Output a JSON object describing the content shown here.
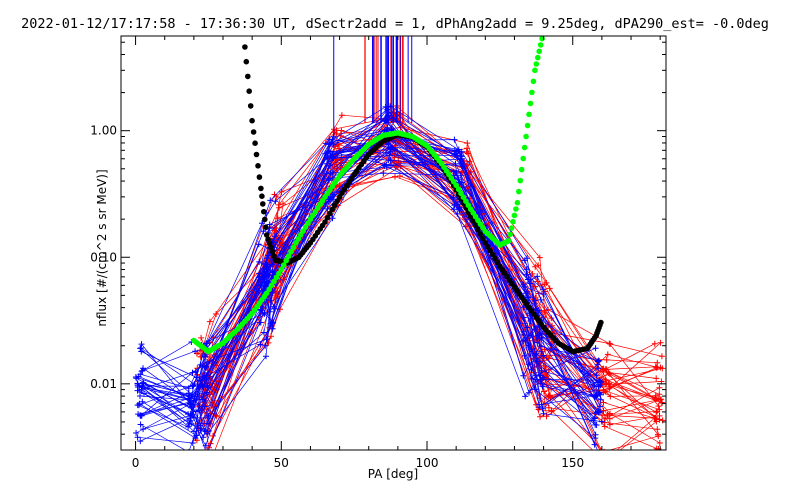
{
  "chart_data": {
    "type": "line",
    "title": "2022-01-12/17:17:58 - 17:36:30 UT, dSectr2add = 1, dPhAng2add = 9.25deg, dPA290_est=  -0.0deg",
    "xlabel": "PA [deg]",
    "ylabel": "nflux [#/(cm^2 s sr MeV)]",
    "xscale": "linear",
    "yscale": "log",
    "xlim": [
      -5,
      182
    ],
    "ylim": [
      0.003,
      5.6
    ],
    "x_ticks": [
      0,
      50,
      100,
      150
    ],
    "x_tick_labels": [
      "0",
      "50",
      "100",
      "150"
    ],
    "y_ticks": [
      0.01,
      0.1,
      1.0
    ],
    "y_tick_labels": [
      "0.01",
      "0.10",
      "1.00"
    ],
    "series": [
      {
        "name": "red-channel-pa-distributions",
        "color": "#ff0000",
        "marker": "+",
        "peak_pa": 90,
        "peak_flux": 1.0,
        "curve_count": 40
      },
      {
        "name": "blue-channel-pa-distributions",
        "color": "#0000ff",
        "marker": "+",
        "peak_pa": 90,
        "peak_flux": 1.0,
        "curve_count": 40
      },
      {
        "name": "green-fit",
        "color": "#00ff00",
        "x": [
          20,
          25,
          30,
          35,
          40,
          45,
          50,
          55,
          60,
          65,
          70,
          75,
          80,
          85,
          90,
          95,
          100,
          105,
          110,
          115,
          120,
          125,
          128,
          131,
          134,
          137,
          140
        ],
        "y": [
          0.022,
          0.018,
          0.021,
          0.027,
          0.036,
          0.052,
          0.08,
          0.13,
          0.2,
          0.3,
          0.44,
          0.6,
          0.78,
          0.92,
          0.96,
          0.9,
          0.76,
          0.55,
          0.37,
          0.24,
          0.16,
          0.125,
          0.135,
          0.27,
          0.9,
          3.0,
          6.0
        ]
      },
      {
        "name": "black-fit",
        "color": "#000000",
        "x": [
          37,
          40,
          43,
          45,
          48,
          52,
          56,
          60,
          65,
          70,
          75,
          80,
          85,
          90,
          95,
          100,
          105,
          110,
          115,
          120,
          125,
          130,
          135,
          140,
          145,
          150,
          155,
          158,
          160
        ],
        "y": [
          6.0,
          1.2,
          0.35,
          0.15,
          0.095,
          0.09,
          0.1,
          0.13,
          0.19,
          0.3,
          0.45,
          0.65,
          0.83,
          0.93,
          0.89,
          0.74,
          0.53,
          0.34,
          0.21,
          0.13,
          0.085,
          0.058,
          0.04,
          0.028,
          0.021,
          0.018,
          0.019,
          0.024,
          0.032
        ]
      }
    ]
  }
}
